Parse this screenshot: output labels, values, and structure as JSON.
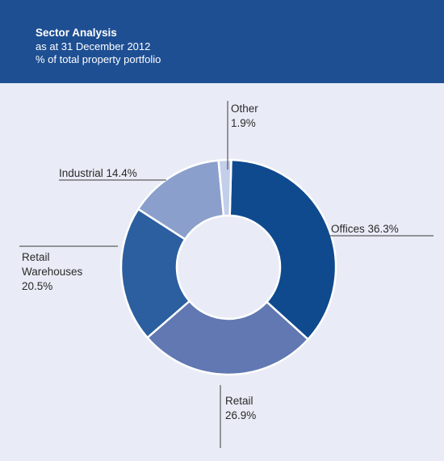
{
  "header": {
    "title": "Sector Analysis",
    "subtitle": "as at 31 December 2012",
    "subtitle2": "% of total property portfolio"
  },
  "chart_data": {
    "type": "pie",
    "title": "Sector Analysis",
    "subtitle": "as at 31 December 2012",
    "unit": "% of total property portfolio",
    "donut": true,
    "categories": [
      "Offices",
      "Retail",
      "Retail Warehouses",
      "Industrial",
      "Other"
    ],
    "values": [
      36.3,
      26.9,
      20.5,
      14.4,
      1.9
    ],
    "labels": [
      [
        "Offices 36.3%"
      ],
      [
        "Retail",
        "26.9%"
      ],
      [
        "Retail",
        "Warehouses",
        "20.5%"
      ],
      [
        "Industrial 14.4%"
      ],
      [
        "Other",
        "1.9%"
      ]
    ],
    "colors": [
      "#0f4a8f",
      "#6178b2",
      "#2b5f9f",
      "#8a9fcb",
      "#c3ceea"
    ],
    "start_angle_deg": 1.5,
    "legend": "none"
  }
}
